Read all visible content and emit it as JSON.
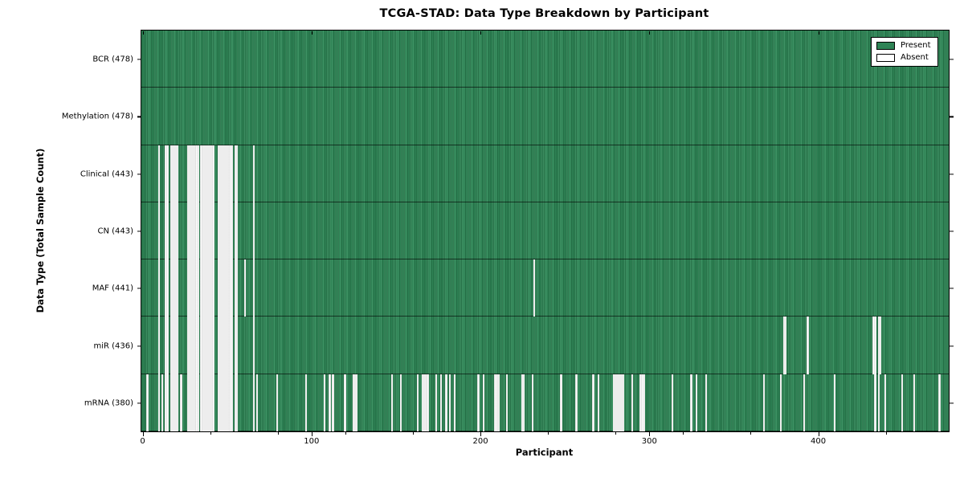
{
  "title": "TCGA-STAD: Data Type Breakdown by Participant",
  "xlabel": "Participant",
  "ylabel": "Data Type (Total Sample Count)",
  "legend": {
    "present_label": "Present",
    "absent_label": "Absent"
  },
  "colors": {
    "present_base": "#2E8355",
    "present_dark": "#1E5C39",
    "present_light": "#4D9E71",
    "absent_fill": "#FFFFFF",
    "absent_edge": "#C4C4C4",
    "axis": "#000000",
    "background": "#FFFFFF"
  },
  "chart_data": {
    "type": "heatmap",
    "subtype": "presence-absence-matrix",
    "title": "TCGA-STAD: Data Type Breakdown by Participant",
    "xlabel": "Participant",
    "ylabel": "Data Type (Total Sample Count)",
    "n_participants": 478,
    "xlim": [
      -0.5,
      477.5
    ],
    "x_ticks": [
      0,
      100,
      200,
      300,
      400
    ],
    "x_minor_ticks": [
      40,
      80,
      120,
      160,
      240,
      280,
      320,
      360,
      440
    ],
    "grid": false,
    "legend_position": "upper right",
    "legend_entries": [
      "Present",
      "Absent"
    ],
    "rows": [
      {
        "name": "BCR",
        "label": "BCR (478)",
        "total": 478,
        "absent": []
      },
      {
        "name": "Methylation",
        "label": "Methylation (478)",
        "total": 478,
        "absent": []
      },
      {
        "name": "Clinical",
        "label": "Clinical (443)",
        "total": 443,
        "absent": [
          10,
          14,
          15,
          17,
          18,
          19,
          20,
          21,
          27,
          28,
          29,
          30,
          31,
          32,
          33,
          35,
          36,
          37,
          38,
          39,
          40,
          41,
          42,
          45,
          46,
          47,
          48,
          49,
          50,
          51,
          52,
          53,
          55,
          56,
          66
        ]
      },
      {
        "name": "CN",
        "label": "CN (443)",
        "total": 443,
        "absent": [
          10,
          14,
          15,
          17,
          18,
          19,
          20,
          21,
          27,
          28,
          29,
          30,
          31,
          32,
          33,
          35,
          36,
          37,
          38,
          39,
          40,
          41,
          42,
          45,
          46,
          47,
          48,
          49,
          50,
          51,
          52,
          53,
          55,
          56,
          66
        ]
      },
      {
        "name": "MAF",
        "label": "MAF (441)",
        "total": 441,
        "absent": [
          10,
          14,
          15,
          17,
          18,
          19,
          20,
          21,
          27,
          28,
          29,
          30,
          31,
          32,
          33,
          35,
          36,
          37,
          38,
          39,
          40,
          41,
          42,
          45,
          46,
          47,
          48,
          49,
          50,
          51,
          52,
          53,
          55,
          56,
          61,
          66,
          232
        ]
      },
      {
        "name": "miR",
        "label": "miR (436)",
        "total": 436,
        "absent": [
          10,
          14,
          15,
          17,
          18,
          19,
          20,
          21,
          27,
          28,
          29,
          30,
          31,
          32,
          33,
          35,
          36,
          37,
          38,
          39,
          40,
          41,
          42,
          45,
          46,
          47,
          48,
          49,
          50,
          51,
          52,
          53,
          55,
          56,
          66,
          380,
          381,
          394,
          433,
          434,
          436,
          437
        ]
      },
      {
        "name": "mRNA",
        "label": "mRNA (380)",
        "total": 380,
        "absent": [
          3,
          10,
          12,
          14,
          15,
          17,
          18,
          19,
          20,
          21,
          23,
          27,
          28,
          29,
          30,
          31,
          32,
          33,
          35,
          36,
          37,
          38,
          39,
          40,
          41,
          42,
          45,
          46,
          47,
          48,
          49,
          50,
          51,
          52,
          53,
          55,
          56,
          66,
          68,
          80,
          97,
          108,
          111,
          113,
          120,
          125,
          126,
          127,
          148,
          153,
          163,
          166,
          167,
          168,
          169,
          174,
          177,
          180,
          182,
          185,
          199,
          202,
          209,
          210,
          211,
          216,
          225,
          226,
          231,
          248,
          257,
          267,
          270,
          279,
          280,
          281,
          282,
          283,
          284,
          285,
          290,
          295,
          296,
          297,
          314,
          325,
          328,
          334,
          368,
          378,
          392,
          410,
          434,
          436,
          440,
          450,
          457,
          472
        ]
      }
    ]
  }
}
